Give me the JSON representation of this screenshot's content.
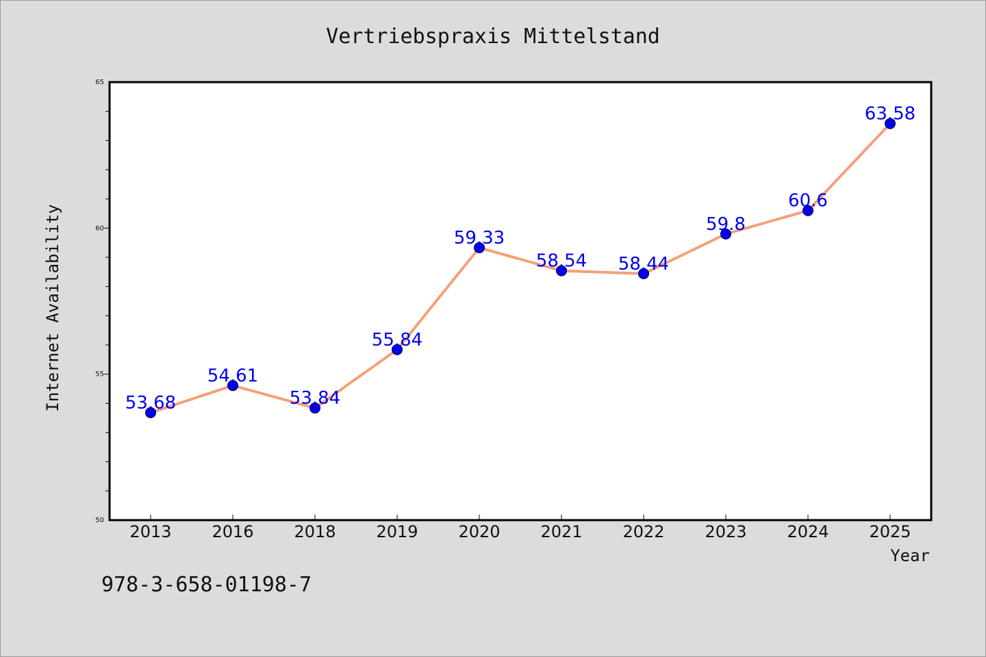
{
  "chart_data": {
    "type": "line",
    "title": "Vertriebspraxis Mittelstand",
    "xlabel": "Year",
    "ylabel": "Internet Availability",
    "categories": [
      "2013",
      "2016",
      "2018",
      "2019",
      "2020",
      "2021",
      "2022",
      "2023",
      "2024",
      "2025"
    ],
    "series": [
      {
        "values": [
          53.68,
          54.61,
          53.84,
          55.84,
          59.33,
          58.54,
          58.44,
          59.8,
          60.6,
          63.58
        ]
      }
    ],
    "data_labels": [
      "53.68",
      "54.61",
      "53.84",
      "55.84",
      "59.33",
      "58.54",
      "58.44",
      "59.8",
      "60.6",
      "63.58"
    ],
    "ylim": [
      50,
      65
    ],
    "yticks": [
      "50",
      "55",
      "60",
      "65"
    ],
    "grid": false,
    "colors": {
      "line": "#f4a07a",
      "marker": "#0000ee",
      "label": "#0000ee",
      "background": "#dcdcdc",
      "plot_background": "#ffffff"
    }
  },
  "footer": {
    "isbn": "978-3-658-01198-7"
  }
}
